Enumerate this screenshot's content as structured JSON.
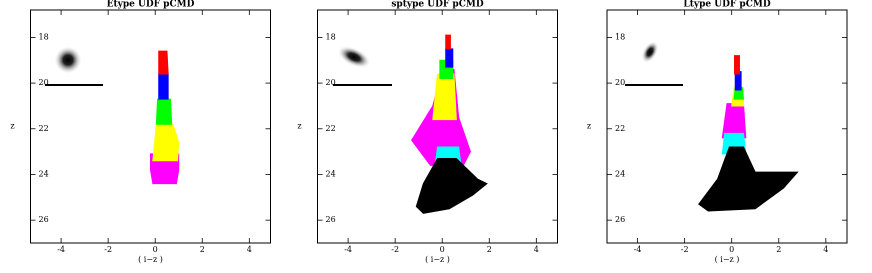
{
  "chart_data": [
    {
      "type": "region",
      "title": "Etype UDF pCMD",
      "x_label": "( i−z )",
      "y_label": "z",
      "xlim": [
        -5.3,
        4.9
      ],
      "ylim": [
        16.8,
        27
      ],
      "y_inverted": true,
      "xticks": [
        -4,
        -2,
        0,
        2,
        4
      ],
      "yticks": [
        18,
        20,
        22,
        24,
        26
      ],
      "series": [
        {
          "color": "#ff00ff",
          "x": [
            -0.2,
            1.0,
            1.0,
            0.9,
            -0.1,
            -0.2
          ],
          "values": [
            23.1,
            23.1,
            23.8,
            24.4,
            24.4,
            23.8
          ]
        },
        {
          "color": "#ffff00",
          "x": [
            0.05,
            0.75,
            1.0,
            0.95,
            -0.1
          ],
          "values": [
            21.8,
            21.8,
            22.6,
            23.4,
            23.4
          ]
        },
        {
          "color": "#00ff00",
          "x": [
            0.1,
            0.65,
            0.7,
            0.05
          ],
          "values": [
            20.7,
            20.7,
            21.8,
            21.8
          ]
        },
        {
          "color": "#0000ff",
          "x": [
            0.15,
            0.55,
            0.55,
            0.15
          ],
          "values": [
            19.6,
            19.6,
            20.7,
            20.7
          ]
        },
        {
          "color": "#ff0000",
          "x": [
            0.15,
            0.5,
            0.55,
            0.15
          ],
          "values": [
            18.6,
            18.6,
            19.6,
            19.6
          ]
        }
      ]
    },
    {
      "type": "region",
      "title": "sptype UDF pCMD",
      "x_label": "( i−z )",
      "y_label": "z",
      "xlim": [
        -5.3,
        4.9
      ],
      "ylim": [
        16.8,
        27
      ],
      "y_inverted": true,
      "xticks": [
        -4,
        -2,
        0,
        2,
        4
      ],
      "yticks": [
        18,
        20,
        22,
        24,
        26
      ],
      "series": [
        {
          "color": "#ff00ff",
          "x": [
            0,
            0.5,
            0.7,
            1.2,
            0.9,
            -0.5,
            -1.3,
            -0.4
          ],
          "values": [
            19.4,
            19.4,
            21.5,
            23.0,
            23.6,
            23.6,
            22.5,
            21.0
          ]
        },
        {
          "color": "#ffff00",
          "x": [
            -0.2,
            0.5,
            0.6,
            -0.4
          ],
          "values": [
            19.6,
            19.6,
            21.6,
            21.6
          ]
        },
        {
          "color": "#00ff00",
          "x": [
            -0.1,
            0.45,
            0.45,
            -0.1
          ],
          "values": [
            19.0,
            19.0,
            19.8,
            19.8
          ]
        },
        {
          "color": "#0000ff",
          "x": [
            0.15,
            0.45,
            0.45,
            0.15
          ],
          "values": [
            18.5,
            18.5,
            19.3,
            19.3
          ]
        },
        {
          "color": "#ff0000",
          "x": [
            0.15,
            0.35,
            0.35,
            0.15
          ],
          "values": [
            17.9,
            17.9,
            18.5,
            18.5
          ]
        },
        {
          "color": "#00ffff",
          "x": [
            -0.2,
            0.7,
            0.8,
            -0.3
          ],
          "values": [
            22.8,
            22.8,
            23.6,
            23.6
          ]
        },
        {
          "color": "#000000",
          "x": [
            -0.2,
            0.6,
            1.5,
            1.9,
            1.3,
            0.3,
            -0.8,
            -1.1,
            -0.8
          ],
          "values": [
            23.3,
            23.3,
            24.2,
            24.4,
            24.9,
            25.5,
            25.7,
            25.4,
            24.4
          ]
        }
      ]
    },
    {
      "type": "region",
      "title": "Ltype UDF pCMD",
      "x_label": "( i−z )",
      "y_label": "z",
      "xlim": [
        -5.3,
        4.9
      ],
      "ylim": [
        16.8,
        27
      ],
      "y_inverted": true,
      "xticks": [
        -4,
        -2,
        0,
        2,
        4
      ],
      "yticks": [
        18,
        20,
        22,
        24,
        26
      ],
      "series": [
        {
          "color": "#ff00ff",
          "x": [
            -0.2,
            0.5,
            0.6,
            -0.4
          ],
          "values": [
            20.9,
            20.9,
            22.4,
            22.4
          ]
        },
        {
          "color": "#ffff00",
          "x": [
            0.1,
            0.5,
            0.5,
            0.0
          ],
          "values": [
            20.2,
            20.2,
            21.0,
            21.0
          ]
        },
        {
          "color": "#00ff00",
          "x": [
            0.15,
            0.45,
            0.5,
            0.1
          ],
          "values": [
            20.2,
            20.2,
            20.7,
            20.7
          ]
        },
        {
          "color": "#0000ff",
          "x": [
            0.15,
            0.4,
            0.4,
            0.15
          ],
          "values": [
            19.5,
            19.5,
            20.3,
            20.3
          ]
        },
        {
          "color": "#ff0000",
          "x": [
            0.12,
            0.33,
            0.33,
            0.12
          ],
          "values": [
            18.8,
            18.8,
            19.6,
            19.6
          ]
        },
        {
          "color": "#00ffff",
          "x": [
            -0.3,
            0.5,
            0.6,
            -0.4
          ],
          "values": [
            22.2,
            22.2,
            23.1,
            23.1
          ]
        },
        {
          "color": "#000000",
          "x": [
            -0.1,
            0.5,
            1.0,
            2.8,
            2.2,
            1.0,
            -1.0,
            -1.4,
            -0.6
          ],
          "values": [
            22.8,
            22.8,
            23.9,
            23.9,
            24.6,
            25.5,
            25.6,
            25.3,
            24.2
          ]
        }
      ]
    }
  ]
}
